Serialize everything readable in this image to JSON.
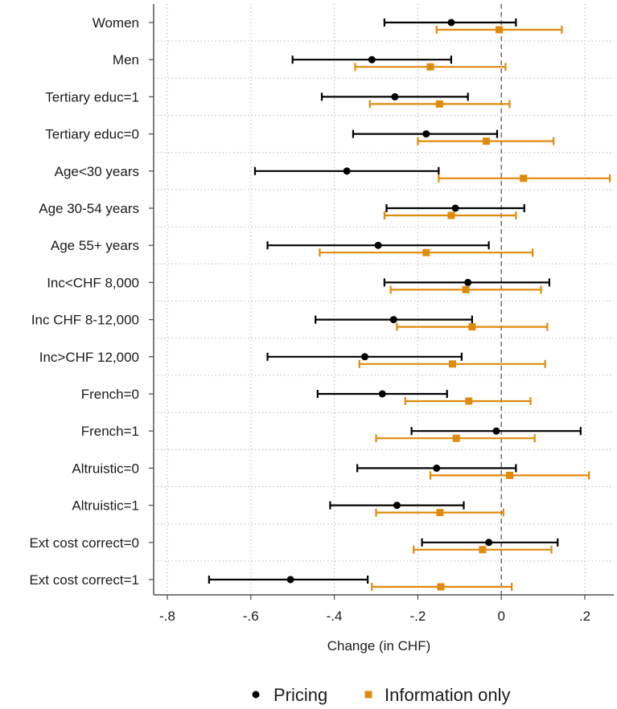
{
  "chart_data": {
    "type": "scatter",
    "subtype": "coefficient-plot",
    "title": "",
    "xlabel": "Change (in CHF)",
    "ylabel": "",
    "xlim": [
      -0.85,
      0.28
    ],
    "xticks": [
      -0.8,
      -0.6,
      -0.4,
      -0.2,
      0,
      0.2
    ],
    "xtick_labels": [
      "-.8",
      "-.6",
      "-.4",
      "-.2",
      "0",
      ".2"
    ],
    "reference_line": 0,
    "grid": true,
    "legend_position": "bottom",
    "categories": [
      "Women",
      "Men",
      "Tertiary educ=1",
      "Tertiary educ=0",
      "Age<30 years",
      "Age 30-54 years",
      "Age 55+ years",
      "Inc<CHF 8,000",
      "Inc CHF 8-12,000",
      "Inc>CHF 12,000",
      "French=0",
      "French=1",
      "Altruistic=0",
      "Altruistic=1",
      "Ext cost correct=0",
      "Ext cost correct=1"
    ],
    "series": [
      {
        "name": "Pricing",
        "marker": "circle",
        "color": "#000000",
        "estimate": [
          -0.12,
          -0.31,
          -0.255,
          -0.18,
          -0.37,
          -0.11,
          -0.295,
          -0.08,
          -0.258,
          -0.327,
          -0.285,
          -0.012,
          -0.155,
          -0.25,
          -0.03,
          -0.505
        ],
        "ci_low": [
          -0.28,
          -0.5,
          -0.43,
          -0.355,
          -0.59,
          -0.275,
          -0.56,
          -0.28,
          -0.445,
          -0.56,
          -0.44,
          -0.215,
          -0.345,
          -0.41,
          -0.19,
          -0.7
        ],
        "ci_high": [
          0.035,
          -0.12,
          -0.08,
          -0.01,
          -0.15,
          0.055,
          -0.03,
          0.115,
          -0.07,
          -0.095,
          -0.13,
          0.19,
          0.035,
          -0.09,
          0.135,
          -0.32
        ]
      },
      {
        "name": "Information only",
        "marker": "square",
        "color": "#E08A0B",
        "estimate": [
          -0.005,
          -0.17,
          -0.148,
          -0.036,
          0.053,
          -0.12,
          -0.18,
          -0.085,
          -0.07,
          -0.117,
          -0.078,
          -0.108,
          0.02,
          -0.147,
          -0.045,
          -0.145
        ],
        "ci_low": [
          -0.155,
          -0.35,
          -0.315,
          -0.2,
          -0.15,
          -0.28,
          -0.435,
          -0.265,
          -0.25,
          -0.34,
          -0.23,
          -0.3,
          -0.17,
          -0.3,
          -0.21,
          -0.31
        ],
        "ci_high": [
          0.145,
          0.01,
          0.02,
          0.125,
          0.26,
          0.035,
          0.075,
          0.095,
          0.11,
          0.105,
          0.07,
          0.08,
          0.21,
          0.005,
          0.12,
          0.025
        ]
      }
    ]
  }
}
